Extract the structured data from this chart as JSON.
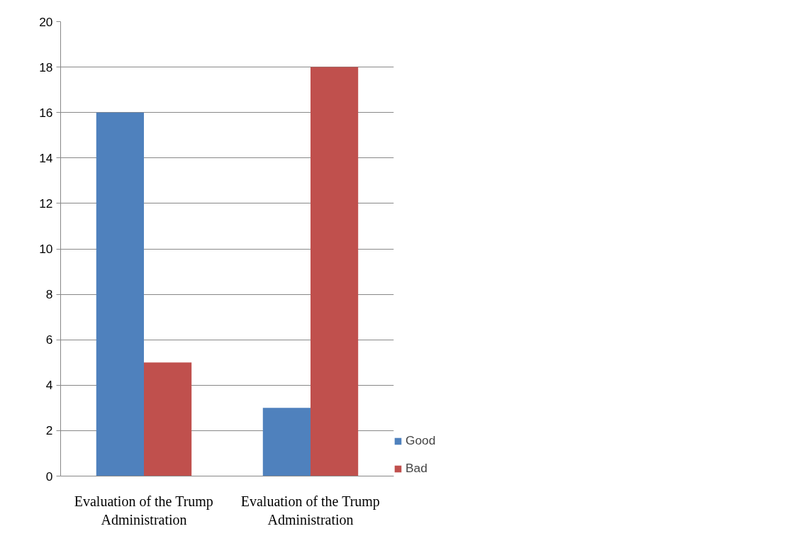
{
  "chart_data": {
    "type": "bar",
    "categories": [
      "Evaluation of the Trump Administration",
      "Evaluation of the Trump Administration"
    ],
    "series": [
      {
        "name": "Good",
        "color": "#4f81bd",
        "values": [
          16,
          3
        ]
      },
      {
        "name": "Bad",
        "color": "#c0504d",
        "values": [
          5,
          18
        ]
      }
    ],
    "ylim": [
      0,
      20
    ],
    "yticks": [
      0,
      2,
      4,
      6,
      8,
      10,
      12,
      14,
      16,
      18,
      20
    ],
    "grid": "y",
    "legend": "right"
  }
}
